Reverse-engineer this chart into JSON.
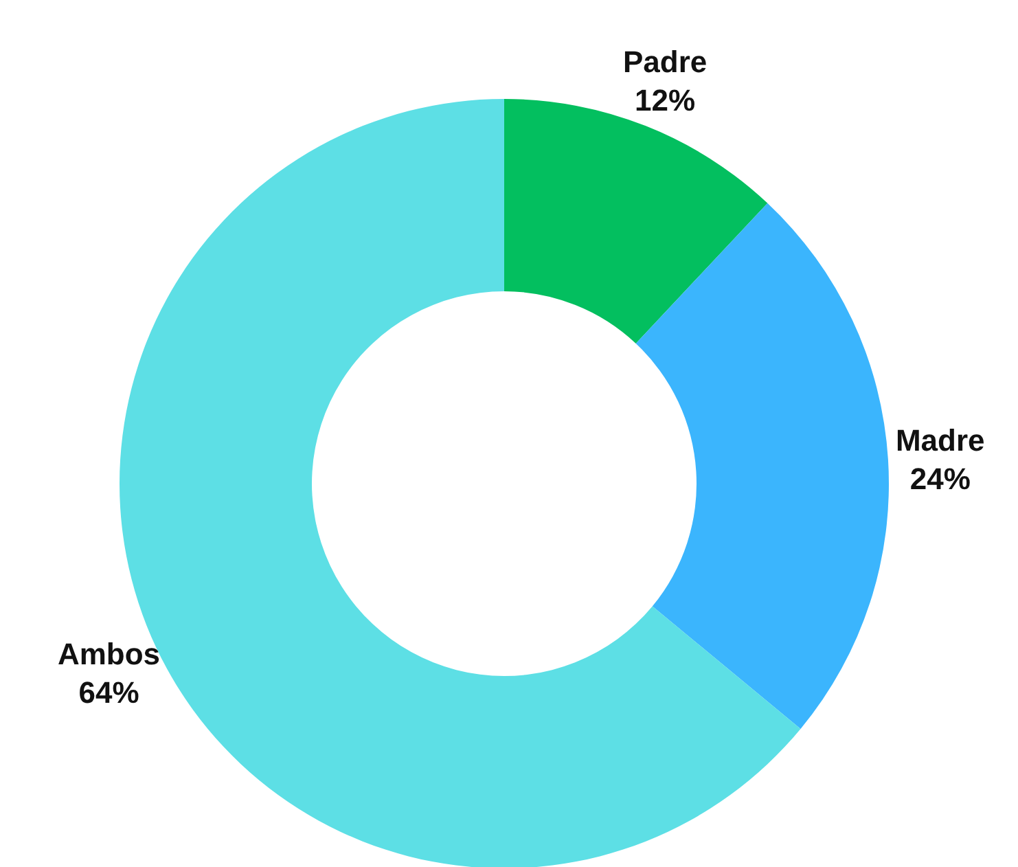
{
  "chart_data": {
    "type": "donut",
    "categories": [
      "Padre",
      "Madre",
      "Ambos"
    ],
    "values": [
      12,
      24,
      64
    ],
    "colors": [
      "#03bf5f",
      "#3bb5fd",
      "#5ddfe5"
    ],
    "value_labels": [
      "12%",
      "24%",
      "64%"
    ]
  }
}
